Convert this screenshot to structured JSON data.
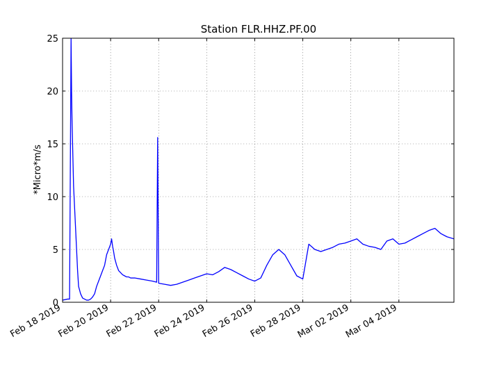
{
  "chart_data": {
    "type": "line",
    "title": "Station FLR.HHZ.PF.00",
    "ylabel": "*Micro*m/s",
    "xlabel": "",
    "ylim": [
      0,
      25
    ],
    "xlim": [
      "2019-02-18T00:00",
      "2019-03-06T07:00"
    ],
    "yticks": [
      0,
      5,
      10,
      15,
      20,
      25
    ],
    "xticks": [
      {
        "date": "2019-02-18",
        "label": "Feb 18 2019"
      },
      {
        "date": "2019-02-20",
        "label": "Feb 20 2019"
      },
      {
        "date": "2019-02-22",
        "label": "Feb 22 2019"
      },
      {
        "date": "2019-02-24",
        "label": "Feb 24 2019"
      },
      {
        "date": "2019-02-26",
        "label": "Feb 26 2019"
      },
      {
        "date": "2019-02-28",
        "label": "Feb 28 2019"
      },
      {
        "date": "2019-03-02",
        "label": "Mar 02 2019"
      },
      {
        "date": "2019-03-04",
        "label": "Mar 04 2019"
      }
    ],
    "grid": true,
    "line_color": "#0000ff",
    "series": [
      {
        "x": [
          "2019-02-18T00:00",
          "2019-02-18T05:00",
          "2019-02-18T07:00",
          "2019-02-18T08:30",
          "2019-02-18T09:00",
          "2019-02-18T09:30",
          "2019-02-18T10:00",
          "2019-02-18T10:30",
          "2019-02-18T11:00",
          "2019-02-18T11:30",
          "2019-02-18T12:00",
          "2019-02-18T12:30",
          "2019-02-18T13:00",
          "2019-02-18T13:30",
          "2019-02-18T14:00",
          "2019-02-18T15:00",
          "2019-02-18T16:00",
          "2019-02-18T18:00",
          "2019-02-18T20:00",
          "2019-02-18T22:00",
          "2019-02-19T00:00",
          "2019-02-19T02:00",
          "2019-02-19T04:00",
          "2019-02-19T06:00",
          "2019-02-19T08:00",
          "2019-02-19T10:00",
          "2019-02-19T12:00",
          "2019-02-19T14:00",
          "2019-02-19T16:00",
          "2019-02-19T18:00",
          "2019-02-19T20:00",
          "2019-02-19T22:00",
          "2019-02-20T00:00",
          "2019-02-20T01:00",
          "2019-02-20T02:00",
          "2019-02-20T03:00",
          "2019-02-20T04:00",
          "2019-02-20T06:00",
          "2019-02-20T08:00",
          "2019-02-20T10:00",
          "2019-02-20T12:00",
          "2019-02-20T14:00",
          "2019-02-20T16:00",
          "2019-02-20T18:00",
          "2019-02-20T20:00",
          "2019-02-20T22:00",
          "2019-02-21T00:00",
          "2019-02-21T06:00",
          "2019-02-21T12:00",
          "2019-02-21T18:00",
          "2019-02-21T22:00",
          "2019-02-21T23:00",
          "2019-02-22T00:00",
          "2019-02-22T06:00",
          "2019-02-22T12:00",
          "2019-02-22T18:00",
          "2019-02-23T00:00",
          "2019-02-23T06:00",
          "2019-02-23T12:00",
          "2019-02-23T18:00",
          "2019-02-24T00:00",
          "2019-02-24T06:00",
          "2019-02-24T12:00",
          "2019-02-24T18:00",
          "2019-02-25T00:00",
          "2019-02-25T06:00",
          "2019-02-25T12:00",
          "2019-02-25T18:00",
          "2019-02-26T00:00",
          "2019-02-26T06:00",
          "2019-02-26T12:00",
          "2019-02-26T18:00",
          "2019-02-27T00:00",
          "2019-02-27T06:00",
          "2019-02-27T12:00",
          "2019-02-27T18:00",
          "2019-02-28T00:00",
          "2019-02-28T06:00",
          "2019-02-28T12:00",
          "2019-02-28T18:00",
          "2019-03-01T00:00",
          "2019-03-01T06:00",
          "2019-03-01T12:00",
          "2019-03-01T18:00",
          "2019-03-02T00:00",
          "2019-03-02T06:00",
          "2019-03-02T12:00",
          "2019-03-02T18:00",
          "2019-03-03T00:00",
          "2019-03-03T06:00",
          "2019-03-03T12:00",
          "2019-03-03T18:00",
          "2019-03-04T00:00",
          "2019-03-04T06:00",
          "2019-03-04T12:00",
          "2019-03-04T18:00",
          "2019-03-05T00:00",
          "2019-03-05T06:00",
          "2019-03-05T12:00",
          "2019-03-05T18:00",
          "2019-03-06T00:00",
          "2019-03-06T07:00"
        ],
        "y": [
          0.2,
          0.3,
          0.3,
          25,
          20,
          17,
          15,
          13,
          11,
          10,
          9,
          8,
          7,
          6,
          5,
          3,
          1.5,
          0.8,
          0.4,
          0.3,
          0.2,
          0.2,
          0.3,
          0.5,
          0.8,
          1.5,
          2,
          2.5,
          3,
          3.5,
          4.5,
          5,
          5.5,
          6,
          5.3,
          4.8,
          4.2,
          3.5,
          3,
          2.8,
          2.6,
          2.5,
          2.4,
          2.4,
          2.3,
          2.3,
          2.3,
          2.2,
          2.1,
          2,
          1.9,
          15.6,
          1.8,
          1.7,
          1.6,
          1.7,
          1.9,
          2.1,
          2.3,
          2.5,
          2.7,
          2.6,
          2.9,
          3.3,
          3.1,
          2.8,
          2.5,
          2.2,
          2,
          2.3,
          3.5,
          4.5,
          5,
          4.5,
          3.5,
          2.5,
          2.2,
          5.5,
          5,
          4.8,
          5,
          5.2,
          5.5,
          5.6,
          5.8,
          6,
          5.5,
          5.3,
          5.2,
          5,
          5.8,
          6,
          5.5,
          5.6,
          5.9,
          6.2,
          6.5,
          6.8,
          7,
          6.5,
          6.2,
          6
        ]
      }
    ]
  }
}
